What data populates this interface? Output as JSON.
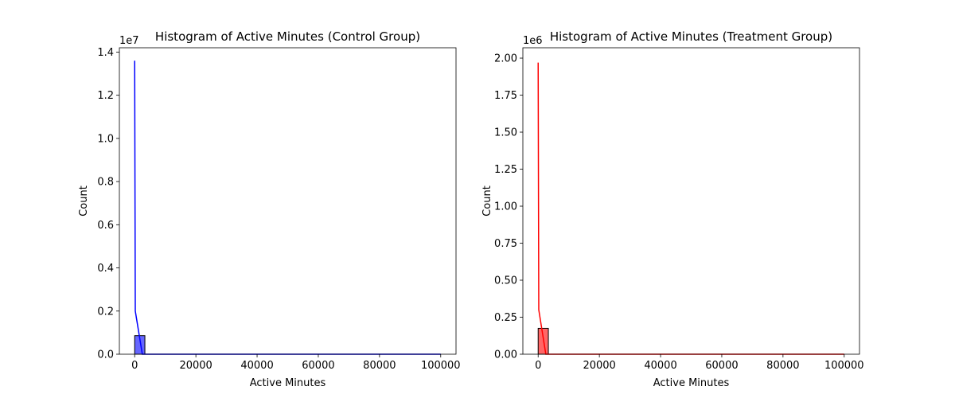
{
  "chart_data": [
    {
      "type": "bar",
      "title": "Histogram of Active Minutes (Control Group)",
      "xlabel": "Active Minutes",
      "ylabel": "Count",
      "offset_text": "1e7",
      "xlim": [
        -5000,
        105000
      ],
      "ylim": [
        0,
        14200000
      ],
      "xticks": [
        0,
        20000,
        40000,
        60000,
        80000,
        100000
      ],
      "xtick_labels": [
        "0",
        "20000",
        "40000",
        "60000",
        "80000",
        "100000"
      ],
      "yticks": [
        0,
        2000000,
        4000000,
        6000000,
        8000000,
        10000000,
        12000000,
        14000000
      ],
      "ytick_labels": [
        "0.0",
        "0.2",
        "0.4",
        "0.6",
        "0.8",
        "1.0",
        "1.2",
        "1.4"
      ],
      "color": "#0000ff",
      "bars": [
        {
          "x0": 0,
          "x1": 3333,
          "count": 860000
        }
      ],
      "kde": {
        "x": [
          0,
          200,
          2500,
          100000
        ],
        "y": [
          13600000,
          2000000,
          0,
          0
        ]
      },
      "grid": false
    },
    {
      "type": "bar",
      "title": "Histogram of Active Minutes (Treatment Group)",
      "xlabel": "Active Minutes",
      "ylabel": "Count",
      "offset_text": "1e6",
      "xlim": [
        -5000,
        105000
      ],
      "ylim": [
        0,
        2070000
      ],
      "xticks": [
        0,
        20000,
        40000,
        60000,
        80000,
        100000
      ],
      "xtick_labels": [
        "0",
        "20000",
        "40000",
        "60000",
        "80000",
        "100000"
      ],
      "yticks": [
        0,
        250000,
        500000,
        750000,
        1000000,
        1250000,
        1500000,
        1750000,
        2000000
      ],
      "ytick_labels": [
        "0.00",
        "0.25",
        "0.50",
        "0.75",
        "1.00",
        "1.25",
        "1.50",
        "1.75",
        "2.00"
      ],
      "color": "#ff0000",
      "bars": [
        {
          "x0": 0,
          "x1": 3333,
          "count": 175000
        }
      ],
      "kde": {
        "x": [
          0,
          200,
          2500,
          100000
        ],
        "y": [
          1970000,
          300000,
          0,
          0
        ]
      },
      "grid": false
    }
  ]
}
